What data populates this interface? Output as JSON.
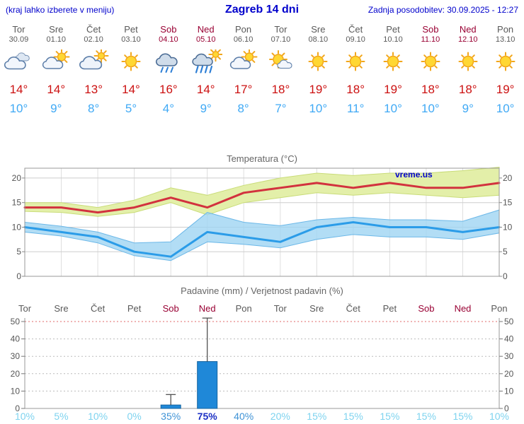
{
  "header": {
    "left_note": "(kraj lahko izberete v meniju)",
    "title": "Zagreb 14 dni",
    "updated": "Zadnja posodobitev: 30.09.2025 - 12:27"
  },
  "days": [
    {
      "name": "Tor",
      "date": "30.09",
      "weekend": false,
      "icon": "cloudy",
      "tmax": 14,
      "tmin": 10
    },
    {
      "name": "Sre",
      "date": "01.10",
      "weekend": false,
      "icon": "partly-cloudy",
      "tmax": 14,
      "tmin": 9
    },
    {
      "name": "Čet",
      "date": "02.10",
      "weekend": false,
      "icon": "mostly-cloudy",
      "tmax": 13,
      "tmin": 8
    },
    {
      "name": "Pet",
      "date": "03.10",
      "weekend": false,
      "icon": "sunny",
      "tmax": 14,
      "tmin": 5
    },
    {
      "name": "Sob",
      "date": "04.10",
      "weekend": true,
      "icon": "rain",
      "tmax": 16,
      "tmin": 4
    },
    {
      "name": "Ned",
      "date": "05.10",
      "weekend": true,
      "icon": "showers",
      "tmax": 14,
      "tmin": 9
    },
    {
      "name": "Pon",
      "date": "06.10",
      "weekend": false,
      "icon": "partly-cloudy",
      "tmax": 17,
      "tmin": 8
    },
    {
      "name": "Tor",
      "date": "07.10",
      "weekend": false,
      "icon": "mostly-sunny",
      "tmax": 18,
      "tmin": 7
    },
    {
      "name": "Sre",
      "date": "08.10",
      "weekend": false,
      "icon": "sunny",
      "tmax": 19,
      "tmin": 10
    },
    {
      "name": "Čet",
      "date": "09.10",
      "weekend": false,
      "icon": "sunny",
      "tmax": 18,
      "tmin": 11
    },
    {
      "name": "Pet",
      "date": "10.10",
      "weekend": false,
      "icon": "sunny",
      "tmax": 19,
      "tmin": 10
    },
    {
      "name": "Sob",
      "date": "11.10",
      "weekend": true,
      "icon": "sunny",
      "tmax": 18,
      "tmin": 10
    },
    {
      "name": "Ned",
      "date": "12.10",
      "weekend": true,
      "icon": "sunny",
      "tmax": 18,
      "tmin": 9
    },
    {
      "name": "Pon",
      "date": "13.10",
      "weekend": false,
      "icon": "sunny",
      "tmax": 19,
      "tmin": 10
    }
  ],
  "chart_data": [
    {
      "type": "line",
      "title": "Temperatura (°C)",
      "watermark": "vreme.us",
      "categories": [
        "Tor",
        "Sre",
        "Čet",
        "Pet",
        "Sob",
        "Ned",
        "Pon",
        "Tor",
        "Sre",
        "Čet",
        "Pet",
        "Sob",
        "Ned",
        "Pon"
      ],
      "ylim": [
        0,
        22
      ],
      "yticks": [
        0,
        5,
        10,
        15,
        20
      ],
      "series": [
        {
          "name": "max-temp",
          "color": "#d2323e",
          "values": [
            14,
            14,
            13,
            14,
            16,
            14,
            17,
            18,
            19,
            18,
            19,
            18,
            18,
            19
          ]
        },
        {
          "name": "min-temp",
          "color": "#2b9ce8",
          "values": [
            10,
            9,
            8,
            5,
            4,
            9,
            8,
            7,
            10,
            11,
            10,
            10,
            9,
            10
          ]
        },
        {
          "name": "max-band-upper",
          "values": [
            15,
            15,
            14,
            15.5,
            18,
            16.5,
            18.5,
            20,
            21,
            20.5,
            21,
            21,
            21.5,
            22.2
          ]
        },
        {
          "name": "max-band-lower",
          "values": [
            13.2,
            13,
            12.2,
            13,
            15,
            12.5,
            15,
            16,
            17,
            16.5,
            17,
            16.5,
            16,
            16.5
          ]
        },
        {
          "name": "min-band-upper",
          "values": [
            11,
            10.2,
            9,
            6.8,
            7,
            13,
            11,
            10.3,
            11.5,
            12,
            11.5,
            11.5,
            11.2,
            13.5
          ]
        },
        {
          "name": "min-band-lower",
          "values": [
            9,
            8.2,
            6.8,
            4.2,
            3.2,
            7,
            6.5,
            5.8,
            7.5,
            8.5,
            8,
            8,
            7.5,
            8.8
          ]
        }
      ],
      "band_colors": {
        "max": "#e3efa9",
        "max_edge": "#c9dc78",
        "min": "#9fd4f2",
        "min_edge": "#6cb8e8"
      }
    },
    {
      "type": "bar",
      "title": "Padavine (mm) / Verjetnost padavin (%)",
      "categories": [
        "Tor",
        "Sre",
        "Čet",
        "Pet",
        "Sob",
        "Ned",
        "Pon",
        "Tor",
        "Sre",
        "Čet",
        "Pet",
        "Sob",
        "Ned",
        "Pon"
      ],
      "ylim": [
        0,
        52
      ],
      "yticks": [
        0,
        10,
        20,
        30,
        40,
        50
      ],
      "values": [
        0,
        0,
        0,
        0,
        2,
        27,
        0,
        0,
        0,
        0,
        0,
        0,
        0,
        0
      ],
      "whisker_max": [
        0,
        0,
        0,
        0,
        8,
        52,
        0,
        0,
        0,
        0,
        0,
        0,
        0,
        0
      ],
      "probabilities_percent": [
        10,
        5,
        10,
        0,
        35,
        75,
        40,
        20,
        15,
        15,
        15,
        15,
        15,
        10
      ],
      "bar_color": "#1f88d8"
    }
  ],
  "colors": {
    "link": "#0000cc",
    "weekday": "#595959",
    "weekend": "#990033",
    "tmax": "#cc1111",
    "tmin": "#3fa9f5",
    "prob_low": "#7ed3ef",
    "prob_mid": "#3f93d6",
    "prob_high": "#1b2fc4",
    "grid_red": "#e06a6a"
  }
}
